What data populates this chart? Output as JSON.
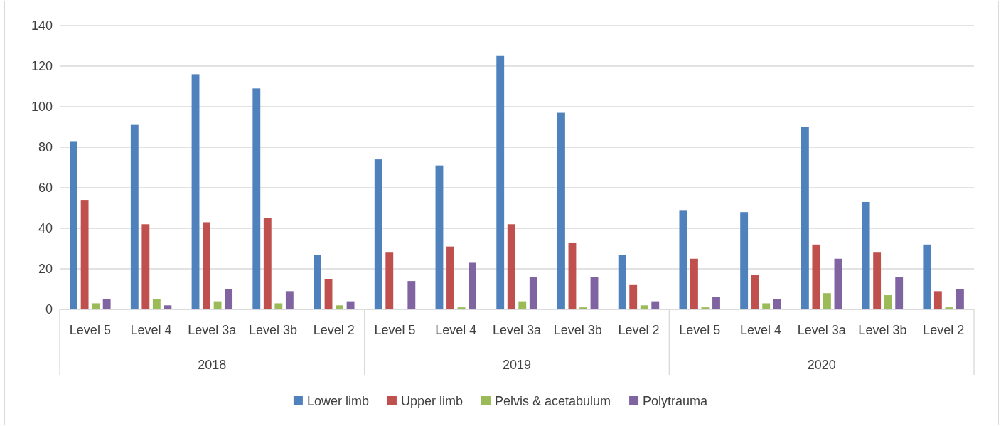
{
  "chart_data": {
    "type": "bar",
    "categories": [
      "Level 5",
      "Level 4",
      "Level 3a",
      "Level 3b",
      "Level 2",
      "Level 5",
      "Level 4",
      "Level 3a",
      "Level 3b",
      "Level 2",
      "Level 5",
      "Level 4",
      "Level 3a",
      "Level 3b",
      "Level 2"
    ],
    "series": [
      {
        "name": "Lower limb",
        "color": "#4f81bd",
        "values": [
          83,
          91,
          116,
          109,
          27,
          74,
          71,
          125,
          97,
          27,
          49,
          48,
          90,
          53,
          32
        ]
      },
      {
        "name": "Upper limb",
        "color": "#c0504d",
        "values": [
          54,
          42,
          43,
          45,
          15,
          28,
          31,
          42,
          33,
          12,
          25,
          17,
          32,
          28,
          9
        ]
      },
      {
        "name": "Pelvis & acetabulum",
        "color": "#9bbb59",
        "values": [
          3,
          5,
          4,
          3,
          2,
          0,
          1,
          4,
          1,
          2,
          1,
          3,
          8,
          7,
          1
        ]
      },
      {
        "name": "Polytrauma",
        "color": "#8064a2",
        "values": [
          5,
          2,
          10,
          9,
          4,
          14,
          23,
          16,
          16,
          4,
          6,
          5,
          25,
          16,
          10
        ]
      }
    ],
    "annotations": [
      "2018",
      "2019",
      "2020"
    ],
    "ylim": [
      0,
      140
    ],
    "yticks": [
      0,
      20,
      40,
      60,
      80,
      100,
      120,
      140
    ],
    "grid": "y",
    "legend": "bottom"
  }
}
